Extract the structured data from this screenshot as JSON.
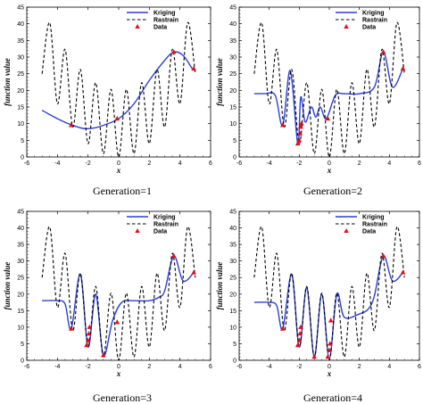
{
  "chart_data": [
    {
      "type": "line",
      "caption": "Generation=1",
      "xlabel": "x",
      "ylabel": "function value",
      "xlim": [
        -6,
        6
      ],
      "ylim": [
        0,
        45
      ],
      "xticks": [
        -6,
        -4,
        -2,
        0,
        2,
        4,
        6
      ],
      "yticks": [
        0,
        5,
        10,
        15,
        20,
        25,
        30,
        35,
        40,
        45
      ],
      "legend_position": "top-right",
      "series": [
        {
          "name": "Kriging",
          "style": "solid",
          "color": "#2b3fd6",
          "x": [
            -5.0,
            -4.0,
            -3.0,
            -2.2,
            -1.5,
            -1.0,
            0.0,
            1.0,
            2.0,
            3.0,
            3.6,
            4.2,
            4.8
          ],
          "y": [
            14.0,
            11.5,
            9.5,
            8.5,
            8.8,
            9.5,
            11.5,
            16.0,
            23.0,
            29.0,
            31.5,
            30.5,
            26.5
          ]
        },
        {
          "name": "Rastrain",
          "style": "dashed",
          "color": "#000000",
          "x": [
            -5.0,
            -4.5,
            -4.0,
            -3.5,
            -3.0,
            -2.5,
            -2.0,
            -1.5,
            -1.0,
            -0.5,
            0.0,
            0.5,
            1.0,
            1.5,
            2.0,
            2.5,
            3.0,
            3.5,
            4.0,
            4.5,
            5.0
          ],
          "y": [
            25.0,
            40.3,
            16.0,
            32.3,
            9.0,
            26.3,
            4.0,
            22.3,
            1.0,
            20.3,
            0.0,
            20.3,
            1.0,
            22.3,
            4.0,
            26.3,
            9.0,
            32.3,
            16.0,
            40.3,
            25.0
          ]
        },
        {
          "name": "Data",
          "style": "marker",
          "color": "#e0101a",
          "x": [
            -3.1,
            -0.1,
            3.6,
            4.9
          ],
          "y": [
            9.5,
            11.5,
            31.5,
            26.5
          ]
        }
      ]
    },
    {
      "type": "line",
      "caption": "Generation=2",
      "xlabel": "x",
      "ylabel": "function value",
      "xlim": [
        -6,
        6
      ],
      "ylim": [
        0,
        45
      ],
      "xticks": [
        -6,
        -4,
        -2,
        0,
        2,
        4,
        6
      ],
      "yticks": [
        0,
        5,
        10,
        15,
        20,
        25,
        30,
        35,
        40,
        45
      ],
      "legend_position": "top-right",
      "series": [
        {
          "name": "Kriging",
          "style": "solid",
          "color": "#2b3fd6",
          "x": [
            -5.0,
            -4.3,
            -3.6,
            -3.1,
            -2.6,
            -2.1,
            -1.9,
            -1.6,
            -1.2,
            -0.9,
            -0.6,
            -0.2,
            0.4,
            1.0,
            2.0,
            3.0,
            3.6,
            4.2,
            4.9
          ],
          "y": [
            19.0,
            19.0,
            18.5,
            9.5,
            26.0,
            4.0,
            18.0,
            10.5,
            15.0,
            12.0,
            15.0,
            11.5,
            18.5,
            19.0,
            19.0,
            21.0,
            31.5,
            21.0,
            26.5
          ]
        },
        {
          "name": "Rastrain",
          "style": "dashed",
          "color": "#000000",
          "x": [
            -5.0,
            -4.5,
            -4.0,
            -3.5,
            -3.0,
            -2.5,
            -2.0,
            -1.5,
            -1.0,
            -0.5,
            0.0,
            0.5,
            1.0,
            1.5,
            2.0,
            2.5,
            3.0,
            3.5,
            4.0,
            4.5,
            5.0
          ],
          "y": [
            25.0,
            40.3,
            16.0,
            32.3,
            9.0,
            26.3,
            4.0,
            22.3,
            1.0,
            20.3,
            0.0,
            20.3,
            1.0,
            22.3,
            4.0,
            26.3,
            9.0,
            32.3,
            16.0,
            40.3,
            25.0
          ]
        },
        {
          "name": "Data",
          "style": "marker",
          "color": "#e0101a",
          "x": [
            -3.1,
            -2.1,
            -2.0,
            -1.95,
            -1.9,
            -1.85,
            -0.1,
            3.6,
            4.9
          ],
          "y": [
            9.5,
            4.0,
            5.0,
            7.0,
            9.0,
            10.0,
            11.5,
            31.5,
            26.5
          ]
        }
      ]
    },
    {
      "type": "line",
      "caption": "Generation=3",
      "xlabel": "x",
      "ylabel": "function value",
      "xlim": [
        -6,
        6
      ],
      "ylim": [
        0,
        45
      ],
      "xticks": [
        -6,
        -4,
        -2,
        0,
        2,
        4,
        6
      ],
      "yticks": [
        0,
        5,
        10,
        15,
        20,
        25,
        30,
        35,
        40,
        45
      ],
      "legend_position": "top-right",
      "series": [
        {
          "name": "Kriging",
          "style": "solid",
          "color": "#2b3fd6",
          "x": [
            -5.0,
            -4.0,
            -3.5,
            -3.1,
            -2.5,
            -2.0,
            -1.5,
            -1.0,
            -0.4,
            0.2,
            1.0,
            2.0,
            2.6,
            3.0,
            3.6,
            4.2,
            4.9
          ],
          "y": [
            18.0,
            18.0,
            17.0,
            9.5,
            26.0,
            4.0,
            20.0,
            1.5,
            12.0,
            17.5,
            18.0,
            18.0,
            19.0,
            21.0,
            31.5,
            24.0,
            26.5
          ]
        },
        {
          "name": "Rastrain",
          "style": "dashed",
          "color": "#000000",
          "x": [
            -5.0,
            -4.5,
            -4.0,
            -3.5,
            -3.0,
            -2.5,
            -2.0,
            -1.5,
            -1.0,
            -0.5,
            0.0,
            0.5,
            1.0,
            1.5,
            2.0,
            2.5,
            3.0,
            3.5,
            4.0,
            4.5,
            5.0
          ],
          "y": [
            25.0,
            40.3,
            16.0,
            32.3,
            9.0,
            26.3,
            4.0,
            22.3,
            1.0,
            20.3,
            0.0,
            20.3,
            1.0,
            22.3,
            4.0,
            26.3,
            9.0,
            32.3,
            16.0,
            40.3,
            25.0
          ]
        },
        {
          "name": "Data",
          "style": "marker",
          "color": "#e0101a",
          "x": [
            -3.1,
            -2.1,
            -2.0,
            -1.95,
            -1.9,
            -1.0,
            -0.1,
            3.6,
            4.9
          ],
          "y": [
            9.5,
            4.5,
            6.0,
            8.0,
            10.0,
            1.5,
            11.5,
            31.5,
            26.5
          ]
        }
      ]
    },
    {
      "type": "line",
      "caption": "Generation=4",
      "xlabel": "x",
      "ylabel": "function value",
      "xlim": [
        -6,
        6
      ],
      "ylim": [
        0,
        45
      ],
      "xticks": [
        -6,
        -4,
        -2,
        0,
        2,
        4,
        6
      ],
      "yticks": [
        0,
        5,
        10,
        15,
        20,
        25,
        30,
        35,
        40,
        45
      ],
      "legend_position": "top-right",
      "series": [
        {
          "name": "Kriging",
          "style": "solid",
          "color": "#2b3fd6",
          "x": [
            -5.0,
            -4.0,
            -3.5,
            -3.1,
            -2.5,
            -2.0,
            -1.5,
            -1.0,
            -0.5,
            0.0,
            0.5,
            1.0,
            2.0,
            2.6,
            3.0,
            3.6,
            4.2,
            4.9
          ],
          "y": [
            17.5,
            17.5,
            16.5,
            9.5,
            26.0,
            4.0,
            22.0,
            1.0,
            20.0,
            0.5,
            20.0,
            13.0,
            14.0,
            15.5,
            19.5,
            31.5,
            24.0,
            26.5
          ]
        },
        {
          "name": "Rastrain",
          "style": "dashed",
          "color": "#000000",
          "x": [
            -5.0,
            -4.5,
            -4.0,
            -3.5,
            -3.0,
            -2.5,
            -2.0,
            -1.5,
            -1.0,
            -0.5,
            0.0,
            0.5,
            1.0,
            1.5,
            2.0,
            2.5,
            3.0,
            3.5,
            4.0,
            4.5,
            5.0
          ],
          "y": [
            25.0,
            40.3,
            16.0,
            32.3,
            9.0,
            26.3,
            4.0,
            22.3,
            1.0,
            20.3,
            0.0,
            20.3,
            1.0,
            22.3,
            4.0,
            26.3,
            9.0,
            32.3,
            16.0,
            40.3,
            25.0
          ]
        },
        {
          "name": "Data",
          "style": "marker",
          "color": "#e0101a",
          "x": [
            -3.1,
            -2.1,
            -2.0,
            -1.95,
            -1.9,
            -1.0,
            -0.1,
            0.0,
            0.05,
            0.1,
            3.6,
            4.9
          ],
          "y": [
            9.5,
            4.5,
            6.0,
            8.0,
            10.0,
            1.0,
            1.0,
            3.0,
            5.0,
            12.0,
            31.5,
            26.5
          ]
        }
      ]
    }
  ]
}
